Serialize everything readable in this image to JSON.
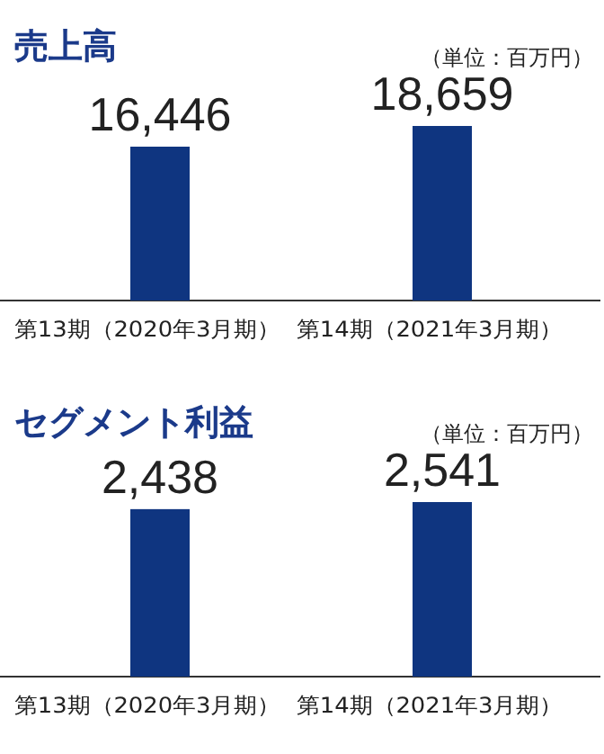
{
  "chart_data": [
    {
      "type": "bar",
      "title": "売上高",
      "subtitle": "（単位：百万円）",
      "categories": [
        "第13期（2020年3月期）",
        "第14期（2021年3月期）"
      ],
      "values": [
        16446,
        18659
      ],
      "value_labels": [
        "16,446",
        "18,659"
      ],
      "color": "#0f3580"
    },
    {
      "type": "bar",
      "title": "セグメント利益",
      "subtitle": "（単位：百万円）",
      "categories": [
        "第13期（2020年3月期）",
        "第14期（2021年3月期）"
      ],
      "values": [
        2438,
        2541
      ],
      "value_labels": [
        "2,438",
        "2,541"
      ],
      "color": "#0f3580"
    }
  ]
}
